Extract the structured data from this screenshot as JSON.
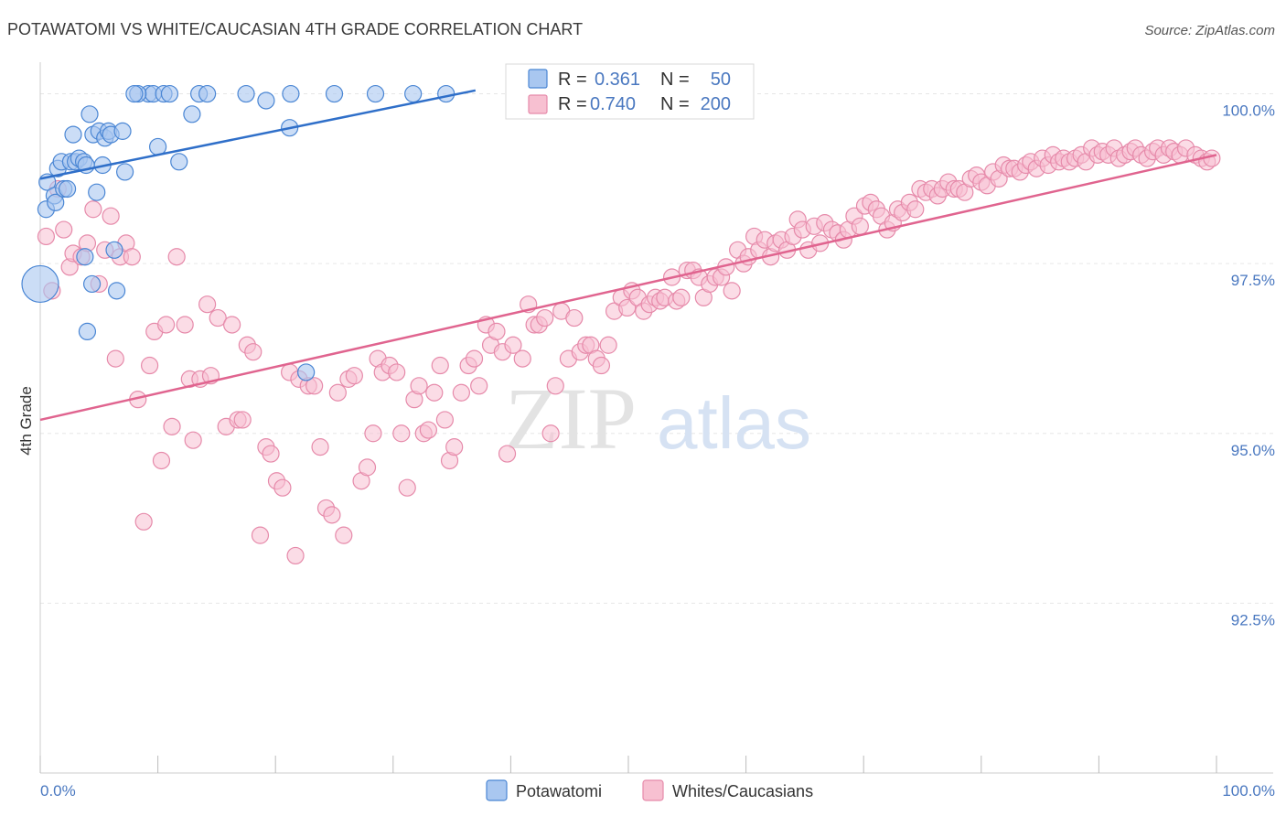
{
  "title": "POTAWATOMI VS WHITE/CAUCASIAN 4TH GRADE CORRELATION CHART",
  "source": "Source: ZipAtlas.com",
  "watermark": {
    "zip": "ZIP",
    "atlas": "atlas"
  },
  "legend": {
    "rows": [
      {
        "r_label": "R =",
        "r_value": "0.361",
        "n_label": "N =",
        "n_value": "50"
      },
      {
        "r_label": "R =",
        "r_value": "0.740",
        "n_label": "N =",
        "n_value": "200"
      }
    ]
  },
  "bottom_legend": [
    "Potawatomi",
    "Whites/Caucasians"
  ],
  "colors": {
    "blue_fill": "#a9c7f0",
    "blue_stroke": "#4a86d4",
    "blue_line": "#2f6fc9",
    "pink_fill": "#f7c0d1",
    "pink_stroke": "#e68aaa",
    "pink_line": "#e0648f",
    "tick_text": "#4a78c0",
    "grid": "#e6e6e6"
  },
  "chart_data": {
    "type": "scatter",
    "title": "POTAWATOMI VS WHITE/CAUCASIAN 4TH GRADE CORRELATION CHART",
    "xlabel": "",
    "ylabel": "4th Grade",
    "xlim": [
      0,
      100
    ],
    "ylim": [
      90.0,
      100.6
    ],
    "x_tick_labels": [
      "0.0%",
      "100.0%"
    ],
    "y_ticks": [
      {
        "value": 100.0,
        "label": "100.0%"
      },
      {
        "value": 97.5,
        "label": "97.5%"
      },
      {
        "value": 95.0,
        "label": "95.0%"
      },
      {
        "value": 92.5,
        "label": "92.5%"
      }
    ],
    "grid": true,
    "legend_placement": "top-center",
    "series": [
      {
        "name": "Potawatomi",
        "r": 0.361,
        "n": 50,
        "trend": {
          "x": [
            0,
            37
          ],
          "y": [
            98.75,
            100.05
          ]
        },
        "points": [
          [
            0.0,
            97.2
          ],
          [
            0.5,
            98.3
          ],
          [
            0.6,
            98.7
          ],
          [
            1.2,
            98.5
          ],
          [
            1.3,
            98.4
          ],
          [
            1.5,
            98.9
          ],
          [
            1.8,
            99.0
          ],
          [
            2.0,
            98.6
          ],
          [
            2.3,
            98.6
          ],
          [
            2.6,
            99.0
          ],
          [
            2.8,
            99.4
          ],
          [
            3.0,
            99.0
          ],
          [
            3.3,
            99.05
          ],
          [
            3.7,
            99.0
          ],
          [
            3.9,
            98.95
          ],
          [
            4.2,
            99.7
          ],
          [
            4.5,
            99.4
          ],
          [
            4.8,
            98.55
          ],
          [
            5.0,
            99.45
          ],
          [
            5.3,
            98.95
          ],
          [
            5.5,
            99.35
          ],
          [
            5.8,
            99.45
          ],
          [
            6.0,
            99.4
          ],
          [
            7.2,
            98.85
          ],
          [
            6.5,
            97.1
          ],
          [
            9.2,
            100.0
          ],
          [
            9.6,
            100.0
          ],
          [
            10.5,
            100.0
          ],
          [
            8.3,
            100.0
          ],
          [
            8.0,
            100.0
          ],
          [
            11.0,
            100.0
          ],
          [
            13.5,
            100.0
          ],
          [
            14.2,
            100.0
          ],
          [
            10.0,
            99.22
          ],
          [
            11.8,
            99.0
          ],
          [
            12.9,
            99.7
          ],
          [
            17.5,
            100.0
          ],
          [
            19.2,
            99.9
          ],
          [
            21.3,
            100.0
          ],
          [
            25.0,
            100.0
          ],
          [
            28.5,
            100.0
          ],
          [
            31.7,
            100.0
          ],
          [
            34.5,
            100.0
          ],
          [
            21.2,
            99.5
          ],
          [
            3.8,
            97.6
          ],
          [
            6.3,
            97.7
          ],
          [
            4.0,
            96.5
          ],
          [
            22.6,
            95.9
          ],
          [
            7.0,
            99.45
          ],
          [
            4.4,
            97.2
          ]
        ]
      },
      {
        "name": "Whites/Caucasians",
        "r": 0.74,
        "n": 200,
        "trend": {
          "x": [
            0,
            100
          ],
          "y": [
            95.2,
            99.1
          ]
        },
        "points": [
          [
            0.5,
            97.9
          ],
          [
            1.0,
            97.1
          ],
          [
            1.5,
            98.6
          ],
          [
            2.0,
            98.0
          ],
          [
            2.5,
            97.45
          ],
          [
            2.8,
            97.65
          ],
          [
            3.5,
            97.6
          ],
          [
            4.0,
            97.8
          ],
          [
            4.5,
            98.3
          ],
          [
            5.0,
            97.2
          ],
          [
            5.5,
            97.7
          ],
          [
            6.0,
            98.2
          ],
          [
            6.4,
            96.1
          ],
          [
            6.8,
            97.6
          ],
          [
            7.3,
            97.8
          ],
          [
            7.8,
            97.6
          ],
          [
            8.3,
            95.5
          ],
          [
            8.8,
            93.7
          ],
          [
            9.3,
            96.0
          ],
          [
            9.7,
            96.5
          ],
          [
            10.3,
            94.6
          ],
          [
            10.7,
            96.6
          ],
          [
            11.2,
            95.1
          ],
          [
            11.6,
            97.6
          ],
          [
            12.3,
            96.6
          ],
          [
            12.7,
            95.8
          ],
          [
            13.0,
            94.9
          ],
          [
            13.6,
            95.8
          ],
          [
            14.2,
            96.9
          ],
          [
            14.5,
            95.85
          ],
          [
            15.1,
            96.7
          ],
          [
            15.8,
            95.1
          ],
          [
            16.3,
            96.6
          ],
          [
            16.8,
            95.2
          ],
          [
            17.2,
            95.2
          ],
          [
            17.6,
            96.3
          ],
          [
            18.1,
            96.2
          ],
          [
            18.7,
            93.5
          ],
          [
            19.2,
            94.8
          ],
          [
            19.6,
            94.7
          ],
          [
            20.1,
            94.3
          ],
          [
            20.6,
            94.2
          ],
          [
            21.2,
            95.9
          ],
          [
            21.7,
            93.2
          ],
          [
            22.0,
            95.8
          ],
          [
            22.8,
            95.7
          ],
          [
            23.3,
            95.7
          ],
          [
            23.8,
            94.8
          ],
          [
            24.3,
            93.9
          ],
          [
            24.8,
            93.8
          ],
          [
            25.3,
            95.6
          ],
          [
            25.8,
            93.5
          ],
          [
            26.2,
            95.8
          ],
          [
            26.7,
            95.85
          ],
          [
            27.3,
            94.3
          ],
          [
            27.8,
            94.5
          ],
          [
            28.3,
            95.0
          ],
          [
            28.7,
            96.1
          ],
          [
            29.1,
            95.9
          ],
          [
            29.7,
            96.0
          ],
          [
            30.3,
            95.9
          ],
          [
            30.7,
            95.0
          ],
          [
            31.2,
            94.2
          ],
          [
            31.8,
            95.5
          ],
          [
            32.2,
            95.7
          ],
          [
            32.6,
            95.0
          ],
          [
            33.0,
            95.05
          ],
          [
            33.5,
            95.6
          ],
          [
            34.0,
            96.0
          ],
          [
            34.4,
            95.2
          ],
          [
            34.8,
            94.6
          ],
          [
            35.2,
            94.8
          ],
          [
            35.8,
            95.6
          ],
          [
            36.4,
            96.0
          ],
          [
            36.9,
            96.1
          ],
          [
            37.3,
            95.7
          ],
          [
            37.9,
            96.6
          ],
          [
            38.3,
            96.3
          ],
          [
            38.8,
            96.5
          ],
          [
            39.3,
            96.2
          ],
          [
            39.7,
            94.7
          ],
          [
            40.2,
            96.3
          ],
          [
            41.0,
            96.1
          ],
          [
            41.5,
            96.9
          ],
          [
            42.0,
            96.6
          ],
          [
            42.4,
            96.6
          ],
          [
            42.9,
            96.7
          ],
          [
            43.4,
            95.0
          ],
          [
            43.8,
            95.7
          ],
          [
            44.3,
            96.8
          ],
          [
            44.9,
            96.1
          ],
          [
            45.4,
            96.7
          ],
          [
            45.9,
            96.2
          ],
          [
            46.4,
            96.3
          ],
          [
            46.8,
            96.3
          ],
          [
            47.3,
            96.1
          ],
          [
            47.7,
            96.0
          ],
          [
            48.3,
            96.3
          ],
          [
            48.8,
            96.8
          ],
          [
            49.4,
            97.0
          ],
          [
            49.9,
            96.85
          ],
          [
            50.3,
            97.1
          ],
          [
            50.8,
            97.0
          ],
          [
            51.3,
            96.8
          ],
          [
            51.8,
            96.9
          ],
          [
            52.3,
            97.0
          ],
          [
            52.7,
            96.95
          ],
          [
            53.1,
            97.0
          ],
          [
            53.7,
            97.3
          ],
          [
            54.1,
            96.95
          ],
          [
            54.5,
            97.0
          ],
          [
            55.0,
            97.4
          ],
          [
            55.5,
            97.4
          ],
          [
            56.0,
            97.3
          ],
          [
            56.4,
            97.0
          ],
          [
            56.9,
            97.2
          ],
          [
            57.4,
            97.3
          ],
          [
            57.9,
            97.3
          ],
          [
            58.3,
            97.45
          ],
          [
            58.8,
            97.1
          ],
          [
            59.3,
            97.7
          ],
          [
            59.8,
            97.5
          ],
          [
            60.2,
            97.6
          ],
          [
            60.7,
            97.9
          ],
          [
            61.1,
            97.7
          ],
          [
            61.6,
            97.85
          ],
          [
            62.1,
            97.6
          ],
          [
            62.5,
            97.8
          ],
          [
            63.0,
            97.85
          ],
          [
            63.5,
            97.7
          ],
          [
            64.0,
            97.9
          ],
          [
            64.4,
            98.15
          ],
          [
            64.8,
            98.0
          ],
          [
            65.3,
            97.7
          ],
          [
            65.8,
            98.05
          ],
          [
            66.3,
            97.8
          ],
          [
            66.7,
            98.1
          ],
          [
            67.3,
            98.0
          ],
          [
            67.8,
            97.95
          ],
          [
            68.3,
            97.85
          ],
          [
            68.7,
            98.0
          ],
          [
            69.2,
            98.2
          ],
          [
            69.7,
            98.05
          ],
          [
            70.1,
            98.35
          ],
          [
            70.6,
            98.4
          ],
          [
            71.1,
            98.3
          ],
          [
            71.5,
            98.2
          ],
          [
            72.0,
            98.0
          ],
          [
            72.5,
            98.1
          ],
          [
            72.9,
            98.3
          ],
          [
            73.3,
            98.25
          ],
          [
            73.9,
            98.4
          ],
          [
            74.4,
            98.3
          ],
          [
            74.8,
            98.6
          ],
          [
            75.3,
            98.55
          ],
          [
            75.8,
            98.6
          ],
          [
            76.3,
            98.5
          ],
          [
            76.7,
            98.6
          ],
          [
            77.2,
            98.7
          ],
          [
            77.7,
            98.6
          ],
          [
            78.1,
            98.6
          ],
          [
            78.6,
            98.55
          ],
          [
            79.1,
            98.75
          ],
          [
            79.6,
            98.8
          ],
          [
            80.0,
            98.7
          ],
          [
            80.5,
            98.65
          ],
          [
            81.0,
            98.85
          ],
          [
            81.5,
            98.75
          ],
          [
            81.9,
            98.95
          ],
          [
            82.4,
            98.9
          ],
          [
            82.8,
            98.9
          ],
          [
            83.3,
            98.85
          ],
          [
            83.8,
            98.95
          ],
          [
            84.2,
            99.0
          ],
          [
            84.7,
            98.9
          ],
          [
            85.2,
            99.05
          ],
          [
            85.7,
            98.95
          ],
          [
            86.1,
            99.1
          ],
          [
            86.6,
            99.0
          ],
          [
            87.0,
            99.05
          ],
          [
            87.5,
            99.0
          ],
          [
            88.0,
            99.05
          ],
          [
            88.5,
            99.1
          ],
          [
            88.9,
            99.0
          ],
          [
            89.4,
            99.2
          ],
          [
            89.9,
            99.1
          ],
          [
            90.3,
            99.15
          ],
          [
            90.8,
            99.1
          ],
          [
            91.3,
            99.2
          ],
          [
            91.7,
            99.05
          ],
          [
            92.2,
            99.1
          ],
          [
            92.7,
            99.15
          ],
          [
            93.1,
            99.2
          ],
          [
            93.6,
            99.1
          ],
          [
            94.1,
            99.05
          ],
          [
            94.6,
            99.15
          ],
          [
            95.0,
            99.2
          ],
          [
            95.5,
            99.1
          ],
          [
            96.0,
            99.2
          ],
          [
            96.4,
            99.15
          ],
          [
            96.9,
            99.1
          ],
          [
            97.4,
            99.2
          ],
          [
            98.2,
            99.1
          ],
          [
            98.7,
            99.05
          ],
          [
            99.2,
            99.0
          ],
          [
            99.6,
            99.05
          ]
        ]
      }
    ]
  }
}
